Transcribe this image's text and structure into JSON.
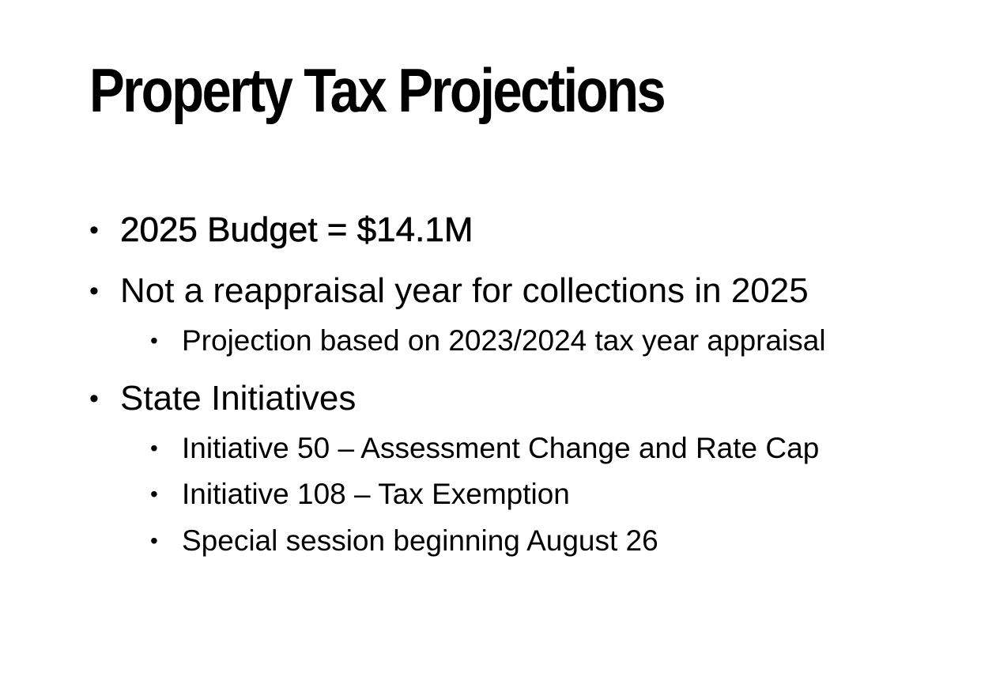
{
  "slide": {
    "title": "Property Tax Projections",
    "bullets": [
      {
        "marker": "•",
        "text": "2025 Budget = $14.1M"
      },
      {
        "marker": "•",
        "text": "Not a reappraisal year for collections in 2025",
        "subitems": [
          {
            "marker": "•",
            "text": "Projection based on 2023/2024 tax year appraisal"
          }
        ]
      },
      {
        "marker": "•",
        "text": "State Initiatives",
        "subitems": [
          {
            "marker": "•",
            "text": "Initiative 50 – Assessment Change and Rate Cap"
          },
          {
            "marker": "•",
            "text": "Initiative 108 – Tax Exemption"
          },
          {
            "marker": "•",
            "text": "Special session beginning August 26"
          }
        ]
      }
    ]
  }
}
